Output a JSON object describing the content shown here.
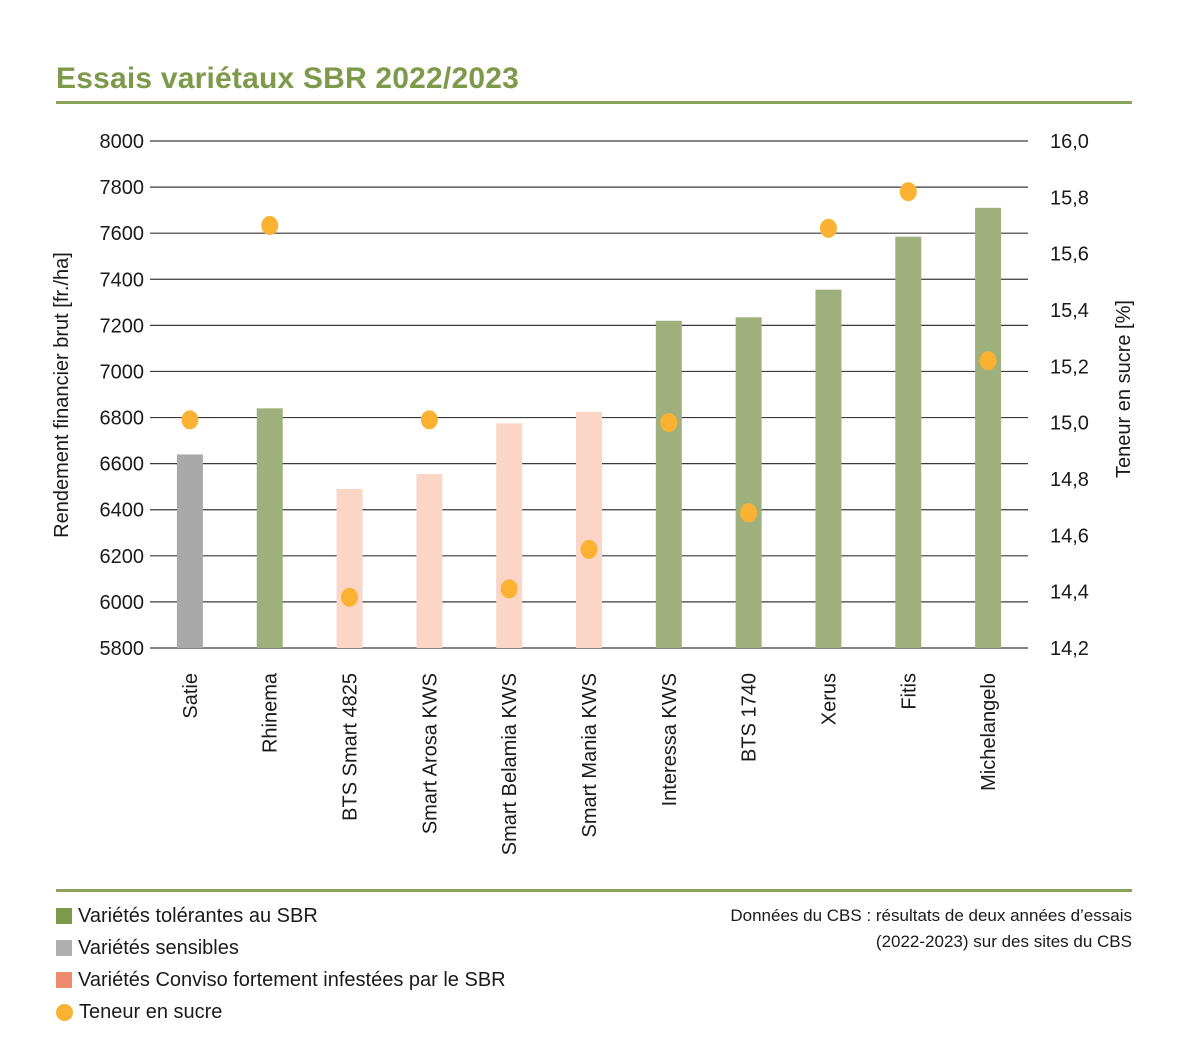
{
  "title": "Essais variétaux SBR 2022/2023",
  "colors": {
    "tolerant": "#9fb07c",
    "sensitive": "#a9a9a9",
    "conviso": "#fbd6c6",
    "sugar": "#fbb232",
    "legend_tolerant": "#7d9a4a",
    "legend_sensitive": "#b0b0b0",
    "legend_conviso": "#f08a6e",
    "accent": "#7d9a4a"
  },
  "legend": [
    {
      "label": "Variétés tolérantes au SBR",
      "color_key": "legend_tolerant",
      "marker": "square"
    },
    {
      "label": "Variétés sensibles",
      "color_key": "legend_sensitive",
      "marker": "square"
    },
    {
      "label": "Variétés Conviso fortement infestées par le SBR",
      "color_key": "legend_conviso",
      "marker": "square"
    },
    {
      "label": "Teneur en sucre",
      "color_key": "sugar",
      "marker": "dot"
    }
  ],
  "source": {
    "line1": "Données du CBS : résultats de deux années d’essais",
    "line2": "(2022-2023) sur des sites du CBS"
  },
  "chart_data": {
    "type": "bar",
    "title": "Essais variétaux SBR 2022/2023",
    "ylabel": "Rendement financier brut [fr./ha]",
    "y2label": "Teneur en sucre [%]",
    "ylim": [
      5800,
      8000
    ],
    "y2lim": [
      14.2,
      16.0
    ],
    "yticks": [
      "5800",
      "6000",
      "6200",
      "6400",
      "6600",
      "6800",
      "7000",
      "7200",
      "7400",
      "7600",
      "7800",
      "8000"
    ],
    "y2ticks": [
      "14,2",
      "14,4",
      "14,6",
      "14,8",
      "15,0",
      "15,2",
      "15,4",
      "15,6",
      "15,8",
      "16,0"
    ],
    "grid": true,
    "categories": [
      "Satie",
      "Rhinema",
      "BTS Smart 4825",
      "Smart Arosa KWS",
      "Smart Belamia KWS",
      "Smart Mania KWS",
      "Interessa KWS",
      "BTS 1740",
      "Xerus",
      "Fitis",
      "Michelangelo"
    ],
    "groups": [
      "sensitive",
      "tolerant",
      "conviso",
      "conviso",
      "conviso",
      "conviso",
      "tolerant",
      "tolerant",
      "tolerant",
      "tolerant",
      "tolerant"
    ],
    "series": [
      {
        "name": "Rendement financier brut",
        "axis": "left",
        "type": "bar",
        "values": [
          6640,
          6840,
          6490,
          6555,
          6775,
          6825,
          7220,
          7235,
          7355,
          7585,
          7710
        ]
      },
      {
        "name": "Teneur en sucre",
        "axis": "right",
        "type": "scatter",
        "values": [
          15.01,
          15.7,
          14.38,
          15.01,
          14.41,
          14.55,
          15.0,
          14.68,
          15.69,
          15.82,
          15.22
        ]
      }
    ]
  }
}
